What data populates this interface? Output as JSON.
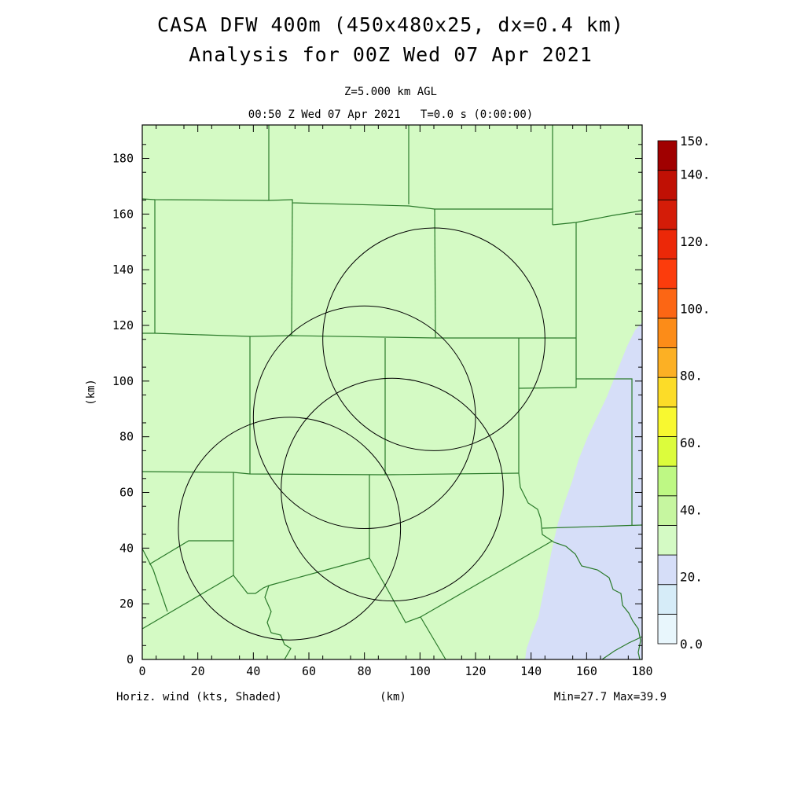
{
  "title": {
    "line1": "CASA DFW 400m (450x480x25, dx=0.4 km)",
    "line2": "Analysis for 00Z Wed 07 Apr 2021"
  },
  "subtitle": {
    "level": "Z=5.000 km AGL",
    "time": "00:50 Z Wed 07 Apr 2021   T=0.0 s (0:00:00)"
  },
  "axes": {
    "xlabel": "(km)",
    "ylabel": "(km)",
    "x_ticks": [
      "0",
      "20",
      "40",
      "60",
      "80",
      "100",
      "120",
      "140",
      "160",
      "180"
    ],
    "y_ticks": [
      "0",
      "20",
      "40",
      "60",
      "80",
      "100",
      "120",
      "140",
      "160",
      "180"
    ],
    "xlim": [
      0,
      180
    ],
    "ylim": [
      0,
      192
    ]
  },
  "footer": {
    "left": "Horiz. wind (kts, Shaded)",
    "center": "(km)",
    "right": "Min=27.7 Max=39.9"
  },
  "colorbar": {
    "labels": [
      "0.0",
      "20.",
      "40.",
      "60.",
      "80.",
      "100.",
      "120.",
      "140.",
      "150."
    ],
    "colors": [
      "#e8f6fc",
      "#d6ecf8",
      "#d6def8",
      "#d4fac4",
      "#c6f6a0",
      "#bef884",
      "#dcfc3c",
      "#f8f830",
      "#fcdc28",
      "#fcb024",
      "#fc8c18",
      "#fc6614",
      "#fc3c0c",
      "#ec2808",
      "#d41c08",
      "#c01004",
      "#a00000"
    ]
  },
  "field": {
    "light_green": "#d4fac4",
    "light_blue": "#d6def8"
  },
  "radar_rings": [
    {
      "x": 105,
      "y": 115,
      "r": 40
    },
    {
      "x": 80,
      "y": 87,
      "r": 40
    },
    {
      "x": 90,
      "y": 61,
      "r": 40
    },
    {
      "x": 53,
      "y": 47,
      "r": 40
    }
  ]
}
